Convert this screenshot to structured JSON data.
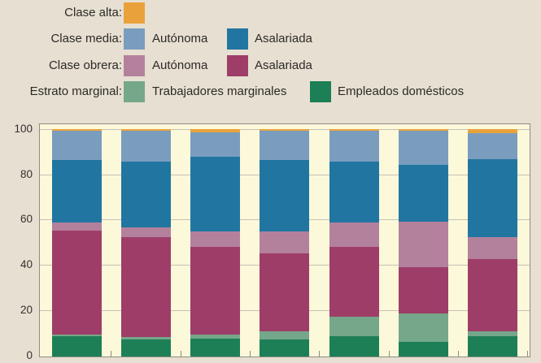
{
  "legend": {
    "rows": [
      {
        "label": "Clase alta:",
        "items": [
          {
            "name": "",
            "color": "#e9a23b"
          }
        ]
      },
      {
        "label": "Clase media:",
        "items": [
          {
            "name": "Autónoma",
            "color": "#7a9dbe"
          },
          {
            "name": "Asalariada",
            "color": "#2176a1"
          }
        ]
      },
      {
        "label": "Clase obrera:",
        "items": [
          {
            "name": "Autónoma",
            "color": "#b4819d"
          },
          {
            "name": "Asalariada",
            "color": "#9e3e68"
          }
        ]
      },
      {
        "label": "Estrato marginal:",
        "items": [
          {
            "name": "Trabajadores marginales",
            "color": "#75a78a"
          },
          {
            "name": "Empleados domésticos",
            "color": "#1d7f56"
          }
        ]
      }
    ]
  },
  "y_axis": {
    "tick_labels": [
      "100",
      "80",
      "60",
      "40",
      "20",
      "0"
    ],
    "tick_values": [
      100,
      80,
      60,
      40,
      20,
      0
    ]
  },
  "chart_data": {
    "type": "bar",
    "stacked": true,
    "orientation": "vertical",
    "num_bars": 7,
    "categories": [
      "",
      "",
      "",
      "",
      "",
      "",
      ""
    ],
    "categories_visible": false,
    "ylim": [
      0,
      100
    ],
    "grid": "horizontal",
    "legend_position": "top-left",
    "series": [
      {
        "name": "Estrato marginal: Empleados domésticos",
        "color": "#1d7f56",
        "values": [
          9,
          7.5,
          8,
          7.5,
          9,
          6.5,
          9
        ]
      },
      {
        "name": "Estrato marginal: Trabajadores marginales",
        "color": "#75a78a",
        "values": [
          0.7,
          1,
          1.5,
          3.5,
          8.5,
          12.5,
          2
        ]
      },
      {
        "name": "Clase obrera: Asalariada",
        "color": "#9e3e68",
        "values": [
          45.8,
          44,
          39,
          34.5,
          31,
          20.5,
          32
        ]
      },
      {
        "name": "Clase obrera: Autónoma",
        "color": "#b4819d",
        "values": [
          3.5,
          4.5,
          6.5,
          9.5,
          10.5,
          20,
          9.5
        ]
      },
      {
        "name": "Clase media: Asalariada",
        "color": "#2176a1",
        "values": [
          27.5,
          29,
          33,
          31.5,
          27,
          25,
          34.5
        ]
      },
      {
        "name": "Clase media: Autónoma",
        "color": "#7a9dbe",
        "values": [
          13,
          13.5,
          11,
          13,
          13.5,
          15,
          11.5
        ]
      },
      {
        "name": "Clase alta",
        "color": "#e9a23b",
        "values": [
          0.5,
          0.5,
          1,
          0.5,
          0.5,
          0.5,
          1.5
        ]
      }
    ]
  },
  "colors": {
    "page_background": "#e7dfd1",
    "plot_background": "#fcf8da",
    "gridline": "#c5c1b6",
    "axis_border": "#8d8d85",
    "text": "#2b2a27"
  }
}
